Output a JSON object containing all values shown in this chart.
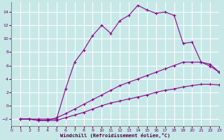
{
  "xlabel": "Windchill (Refroidissement éolien,°C)",
  "background_color": "#c8e8e8",
  "grid_color": "#ffffff",
  "line_color": "#880088",
  "xlim": [
    0,
    23
  ],
  "ylim": [
    -3,
    15.5
  ],
  "xticks": [
    0,
    1,
    2,
    3,
    4,
    5,
    6,
    7,
    8,
    9,
    10,
    11,
    12,
    13,
    14,
    15,
    16,
    17,
    18,
    19,
    20,
    21,
    22,
    23
  ],
  "yticks": [
    -2,
    0,
    2,
    4,
    6,
    8,
    10,
    12,
    14
  ],
  "line1_x": [
    1,
    2,
    3,
    4,
    5,
    6,
    7,
    8,
    9,
    10,
    11,
    12,
    13,
    14,
    15,
    16,
    17,
    18,
    19,
    20,
    21,
    22,
    23
  ],
  "line1_y": [
    -2,
    -2,
    -2,
    -2,
    -2,
    2.5,
    6.5,
    8.3,
    10.5,
    12,
    10.8,
    12.7,
    13.5,
    15.0,
    14.3,
    13.8,
    14.0,
    13.5,
    9.3,
    9.5,
    6.5,
    6.2,
    5.0
  ],
  "line2_x": [
    1,
    2,
    3,
    4,
    5,
    6,
    7,
    8,
    9,
    10,
    11,
    12,
    13,
    14,
    15,
    16,
    17,
    18,
    19,
    20,
    21,
    22,
    23
  ],
  "line2_y": [
    -2,
    -2,
    -2.2,
    -2.2,
    -2.2,
    -1.8,
    -1.4,
    -1.0,
    -0.5,
    0.0,
    0.4,
    0.7,
    1.0,
    1.3,
    1.6,
    2.0,
    2.3,
    2.5,
    2.8,
    3.0,
    3.2,
    3.2,
    3.1
  ],
  "line3_x": [
    1,
    2,
    3,
    4,
    5,
    6,
    7,
    8,
    9,
    10,
    11,
    12,
    13,
    14,
    15,
    16,
    17,
    18,
    19,
    20,
    21,
    22,
    23
  ],
  "line3_y": [
    -2,
    -2,
    -2.2,
    -2.2,
    -1.8,
    -1.2,
    -0.5,
    0.2,
    0.9,
    1.6,
    2.3,
    3.0,
    3.5,
    4.0,
    4.5,
    5.0,
    5.5,
    6.0,
    6.5,
    6.5,
    6.5,
    5.9,
    5.0
  ]
}
